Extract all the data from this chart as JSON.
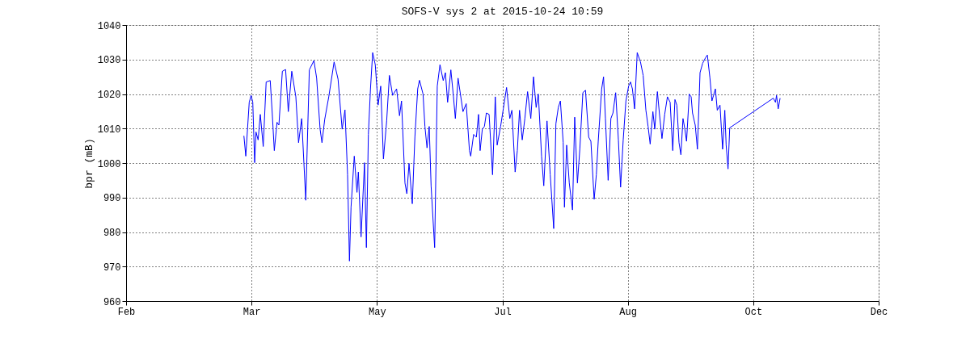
{
  "chart_data": {
    "type": "line",
    "title": "SOFS-V sys 2 at 2015-10-24 10:59",
    "ylabel": "bpr (mB)",
    "xlim": [
      "2015-02-05",
      "2015-12-02"
    ],
    "xticks": [
      {
        "value": "2015-02-05",
        "label": "Feb"
      },
      {
        "value": "2015-03-27",
        "label": "Mar"
      },
      {
        "value": "2015-05-16",
        "label": "May"
      },
      {
        "value": "2015-07-05",
        "label": "Jul"
      },
      {
        "value": "2015-08-24",
        "label": "Aug"
      },
      {
        "value": "2015-10-13",
        "label": "Oct"
      },
      {
        "value": "2015-12-02",
        "label": "Dec"
      }
    ],
    "ylim": [
      960,
      1040
    ],
    "yticks": [
      960,
      970,
      980,
      990,
      1000,
      1010,
      1020,
      1030,
      1040
    ],
    "grid": true,
    "series": [
      {
        "color": "#0000ff",
        "x": [
          "2015-03-23T23:00",
          "2015-03-24T17:00",
          "2015-03-26T02:00",
          "2015-03-26T20:00",
          "2015-03-27T12:00",
          "2015-03-28T06:00",
          "2015-03-28T19:00",
          "2015-03-29T15:00",
          "2015-03-30T12:00",
          "2015-03-31T16:00",
          "2015-04-01T20:00",
          "2015-04-03T11:00",
          "2015-04-04T06:00",
          "2015-04-05T02:00",
          "2015-04-06T04:00",
          "2015-04-06T22:00",
          "2015-04-08T07:00",
          "2015-04-09T14:00",
          "2015-04-10T16:00",
          "2015-04-12T01:00",
          "2015-04-13T16:00",
          "2015-04-14T18:00",
          "2015-04-16T00:00",
          "2015-04-17T15:00",
          "2015-04-19T01:00",
          "2015-04-20T21:00",
          "2015-04-21T23:00",
          "2015-04-23T08:00",
          "2015-04-24T02:00",
          "2015-04-25T04:00",
          "2015-04-26T19:00",
          "2015-04-28T22:00",
          "2015-04-30T12:00",
          "2015-05-02T03:00",
          "2015-05-03T06:00",
          "2015-05-04T07:00",
          "2015-05-05T01:00",
          "2015-05-05T16:00",
          "2015-05-06T23:00",
          "2015-05-08T01:00",
          "2015-05-08T14:00",
          "2015-05-09T16:00",
          "2015-05-11T01:00",
          "2015-05-11T19:00",
          "2015-05-12T14:00",
          "2015-05-13T10:00",
          "2015-05-14T07:00",
          "2015-05-15T08:00",
          "2015-05-16T11:00",
          "2015-05-17T12:00",
          "2015-05-18T14:00",
          "2015-05-19T21:00",
          "2015-05-20T23:00",
          "2015-05-22T06:00",
          "2015-05-23T20:00",
          "2015-05-25T00:00",
          "2015-05-25T19:00",
          "2015-05-27T04:00",
          "2015-05-27T22:00",
          "2015-05-28T19:00",
          "2015-05-30T02:00",
          "2015-05-31T03:00",
          "2015-06-01T06:00",
          "2015-06-01T23:00",
          "2015-06-03T09:00",
          "2015-06-04T03:00",
          "2015-06-04T23:00",
          "2015-06-05T20:00",
          "2015-06-06T14:00",
          "2015-06-08T00:00",
          "2015-06-09T01:00",
          "2015-06-10T03:00",
          "2015-06-11T10:00",
          "2015-06-12T07:00",
          "2015-06-13T04:00",
          "2015-06-14T11:00",
          "2015-06-15T12:00",
          "2015-06-16T06:00",
          "2015-06-17T08:00",
          "2015-06-19T07:00",
          "2015-06-20T14:00",
          "2015-06-21T21:00",
          "2015-06-22T09:00",
          "2015-06-23T13:00",
          "2015-06-24T15:00",
          "2015-06-25T12:00",
          "2015-06-26T03:00",
          "2015-06-27T00:00",
          "2015-06-27T20:00",
          "2015-06-28T15:00",
          "2015-06-29T17:00",
          "2015-07-01T02:00",
          "2015-07-02T04:00",
          "2015-07-02T22:00",
          "2015-07-04T07:00",
          "2015-07-05T09:00",
          "2015-07-06T16:00",
          "2015-07-07T23:00",
          "2015-07-08T19:00",
          "2015-07-10T02:00",
          "2015-07-10T23:00",
          "2015-07-11T20:00",
          "2015-07-12T22:00",
          "2015-07-13T23:00",
          "2015-07-15T01:00",
          "2015-07-16T08:00",
          "2015-07-17T10:00",
          "2015-07-18T11:00",
          "2015-07-19T08:00",
          "2015-07-20T15:00",
          "2015-07-21T12:00",
          "2015-07-22T19:00",
          "2015-07-24T02:00",
          "2015-07-25T11:00",
          "2015-07-26T08:00",
          "2015-07-27T07:00",
          "2015-07-28T03:00",
          "2015-07-29T06:00",
          "2015-07-29T18:00",
          "2015-07-30T15:00",
          "2015-07-31T16:00",
          "2015-08-01T23:00",
          "2015-08-02T20:00",
          "2015-08-03T22:00",
          "2015-08-04T21:00",
          "2015-08-06T02:00",
          "2015-08-07T03:00",
          "2015-08-08T10:00",
          "2015-08-09T07:00",
          "2015-08-10T14:00",
          "2015-08-11T11:00",
          "2015-08-12T05:00",
          "2015-08-13T14:00",
          "2015-08-14T08:00",
          "2015-08-15T02:00",
          "2015-08-16T04:00",
          "2015-08-17T06:00",
          "2015-08-18T02:00",
          "2015-08-19T04:00",
          "2015-08-20T06:00",
          "2015-08-21T03:00",
          "2015-08-22T04:00",
          "2015-08-23T06:00",
          "2015-08-24T08:00",
          "2015-08-25T02:00",
          "2015-08-25T20:00",
          "2015-08-26T17:00",
          "2015-08-27T18:00",
          "2015-08-29T01:00",
          "2015-08-30T03:00",
          "2015-08-31T05:00",
          "2015-09-01T02:00",
          "2015-09-01T22:00",
          "2015-09-03T00:00",
          "2015-09-03T18:00",
          "2015-09-04T19:00",
          "2015-09-05T14:00",
          "2015-09-06T15:00",
          "2015-09-07T17:00",
          "2015-09-08T19:00",
          "2015-09-09T21:00",
          "2015-09-10T22:00",
          "2015-09-11T19:00",
          "2015-09-12T13:00",
          "2015-09-13T10:00",
          "2015-09-14T04:00",
          "2015-09-15T00:00",
          "2015-09-15T18:00",
          "2015-09-16T10:00",
          "2015-09-17T12:00",
          "2015-09-18T06:00",
          "2015-09-18T19:00",
          "2015-09-19T21:00",
          "2015-09-20T18:00",
          "2015-09-21T19:00",
          "2015-09-22T20:00",
          "2015-09-23T23:00",
          "2015-09-24T17:00",
          "2015-09-25T18:00",
          "2015-09-26T13:00",
          "2015-09-27T04:00",
          "2015-09-27T22:00",
          "2015-09-28T16:00",
          "2015-09-29T18:00",
          "2015-09-30T19:00",
          "2015-10-01T16:00",
          "2015-10-02T05:00",
          "2015-10-02T23:00",
          "2015-10-03T15:00",
          "2015-10-21T00:00",
          "2015-10-21T21:00",
          "2015-10-22T07:00",
          "2015-10-22T23:00",
          "2015-10-23T17:00"
        ],
        "values": [
          1007.9,
          1002,
          1017.6,
          1019.6,
          1017.6,
          1000.1,
          1009,
          1006.7,
          1014.1,
          1004.8,
          1023.5,
          1023.9,
          1014.5,
          1003.6,
          1011.8,
          1011,
          1026.6,
          1027.1,
          1014.9,
          1026.6,
          1019.2,
          1005.9,
          1012.9,
          989.2,
          1027,
          1029.7,
          1024.6,
          1009.8,
          1005.9,
          1012.6,
          1019.2,
          1029.3,
          1024.3,
          1009.8,
          1015.4,
          996.6,
          971.6,
          987.2,
          1002,
          991.5,
          997.4,
          978.6,
          1000.1,
          975.5,
          1008.3,
          1021.5,
          1032,
          1028.5,
          1016.8,
          1022.3,
          1001.2,
          1012.2,
          1025.4,
          1019.6,
          1021.5,
          1013.7,
          1018,
          994.2,
          991.1,
          999.9,
          988.2,
          1007.5,
          1021.5,
          1024,
          1020,
          1010.6,
          1004.4,
          1010.6,
          993.4,
          975.5,
          1022.3,
          1028.5,
          1023.9,
          1026.2,
          1017.6,
          1027,
          1019.2,
          1012.9,
          1024.6,
          1014.9,
          1017.2,
          1003.6,
          1002,
          1008.3,
          1007.5,
          1014.1,
          1003.6,
          1009.8,
          1010.6,
          1014.5,
          1014.1,
          996.6,
          1019.2,
          1005.2,
          1010.6,
          1015.7,
          1021.9,
          1012.9,
          1015.3,
          997.4,
          1003.6,
          1015.3,
          1006.7,
          1012.9,
          1020.7,
          1012.9,
          1025,
          1016.1,
          1020,
          1002,
          993.4,
          1012.2,
          996.6,
          981,
          1011.4,
          1016.1,
          1018,
          1005.9,
          987.2,
          1005.2,
          994.2,
          986.4,
          1013.3,
          994.2,
          1004,
          1020.4,
          1021.1,
          1007.5,
          1006.3,
          989.5,
          996.6,
          1006.3,
          1021.5,
          1025,
          1012.9,
          995,
          1012.9,
          1014.5,
          1020.4,
          1006.7,
          993,
          1006.7,
          1018,
          1022.3,
          1023.5,
          1021.5,
          1015.7,
          1032,
          1029.3,
          1025.4,
          1015.3,
          1010.6,
          1005.5,
          1014.9,
          1009.8,
          1020.7,
          1014.5,
          1007.1,
          1014.1,
          1019.2,
          1017.6,
          1003.6,
          1018.4,
          1016.8,
          1005.9,
          1002.4,
          1012.9,
          1009.8,
          1006.3,
          1020,
          1019.2,
          1014.5,
          1011,
          1004,
          1026.2,
          1028.9,
          1030.5,
          1031.3,
          1024.6,
          1018,
          1019.6,
          1021.5,
          1015.3,
          1016.8,
          1004,
          1015.3,
          1005.2,
          998.3,
          1010.2,
          1018.8,
          1017.6,
          1019.6,
          1015.7,
          1018.8
        ]
      }
    ]
  }
}
